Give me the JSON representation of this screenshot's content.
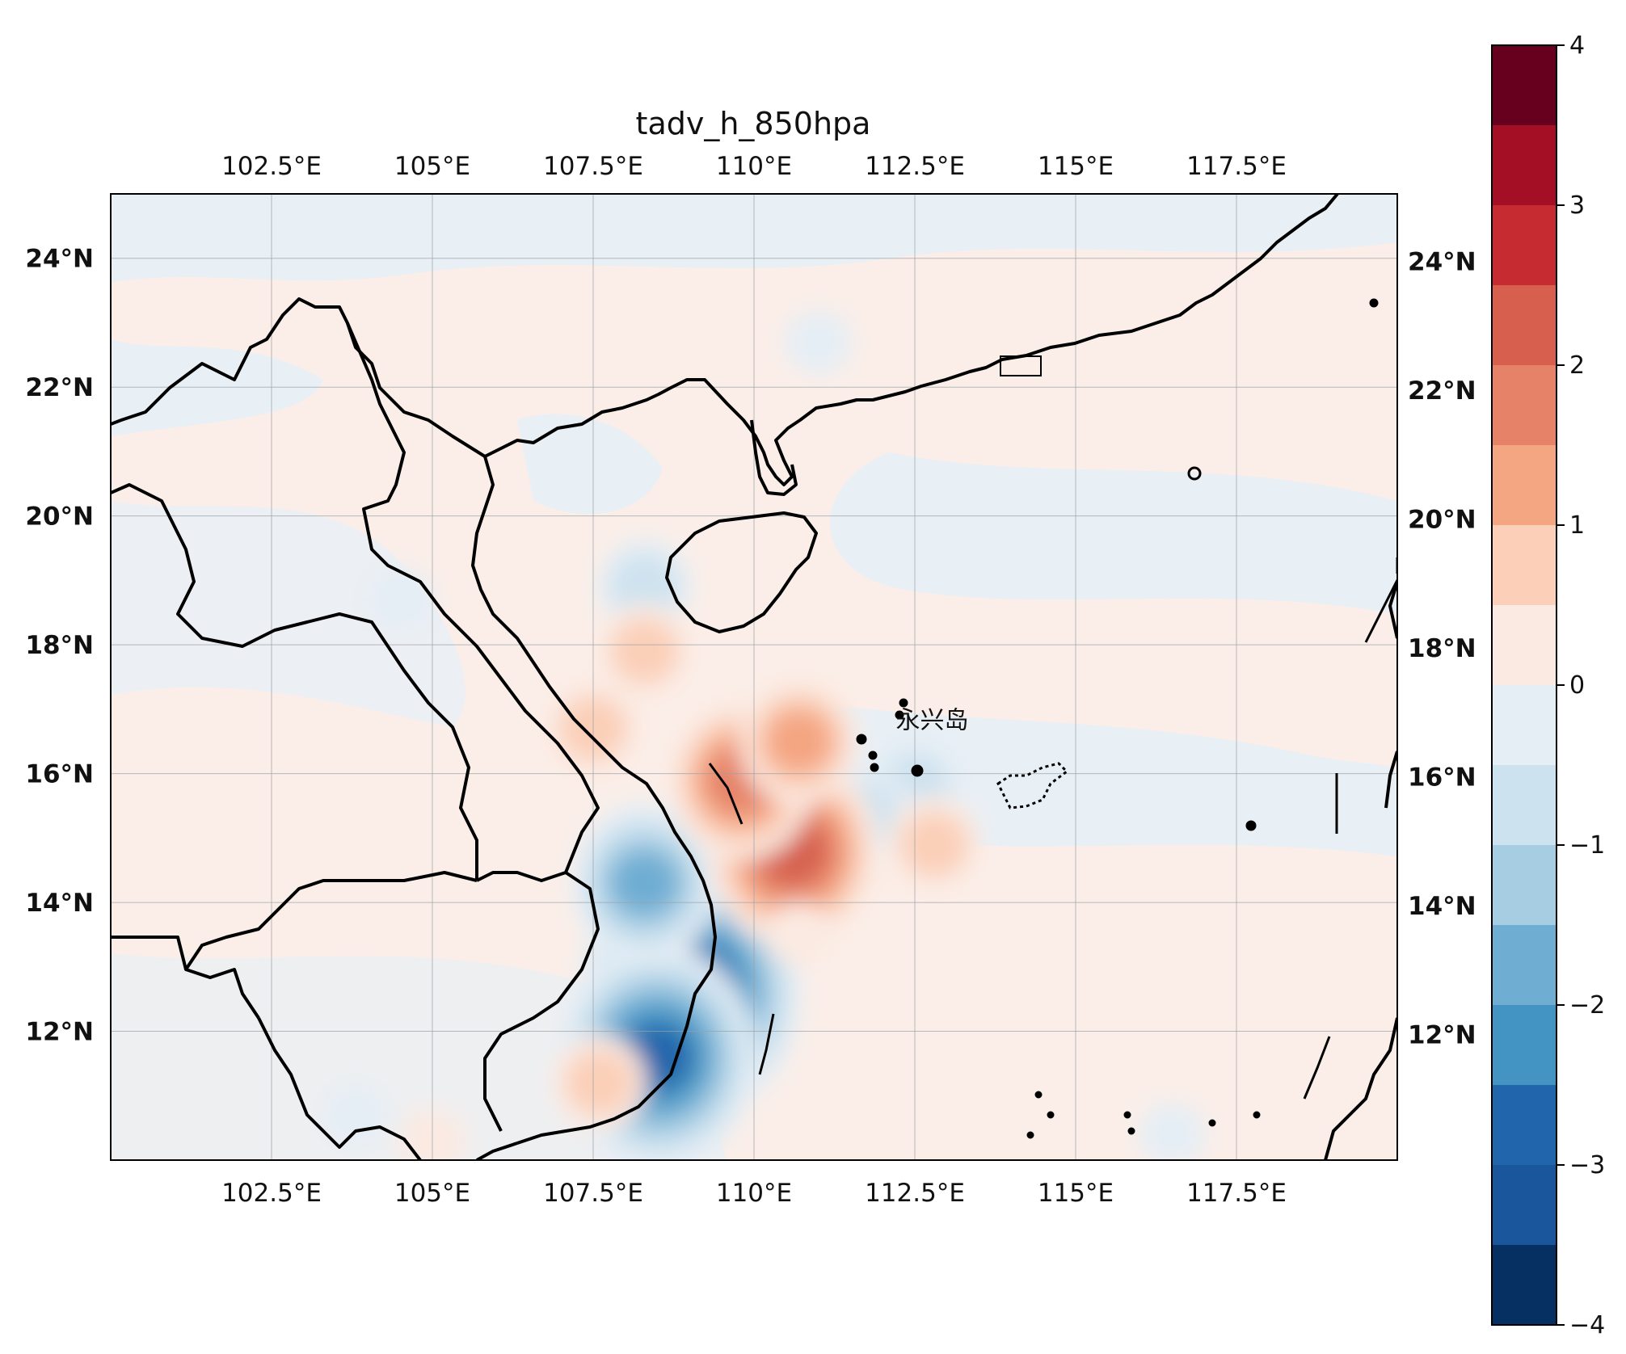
{
  "title": "tadv_h_850hpa",
  "map": {
    "lon_range": [
      100.0,
      120.0
    ],
    "lat_range": [
      10.0,
      25.0
    ],
    "lon_ticks": [
      {
        "value": 102.5,
        "label": "102.5°E"
      },
      {
        "value": 105,
        "label": "105°E"
      },
      {
        "value": 107.5,
        "label": "107.5°E"
      },
      {
        "value": 110,
        "label": "110°E"
      },
      {
        "value": 112.5,
        "label": "112.5°E"
      },
      {
        "value": 115,
        "label": "115°E"
      },
      {
        "value": 117.5,
        "label": "117.5°E"
      }
    ],
    "lat_ticks": [
      {
        "value": 12,
        "label": "12°N"
      },
      {
        "value": 14,
        "label": "14°N"
      },
      {
        "value": 16,
        "label": "16°N"
      },
      {
        "value": 18,
        "label": "18°N"
      },
      {
        "value": 20,
        "label": "20°N"
      },
      {
        "value": 22,
        "label": "22°N"
      },
      {
        "value": 24,
        "label": "24°N"
      }
    ],
    "place_label": {
      "text": "永兴岛",
      "lon": 112.33,
      "lat": 16.83
    },
    "gridlines": true
  },
  "colorbar": {
    "ticks": [
      {
        "value": 4,
        "label": "4"
      },
      {
        "value": 3,
        "label": "3"
      },
      {
        "value": 2,
        "label": "2"
      },
      {
        "value": 1,
        "label": "1"
      },
      {
        "value": 0,
        "label": "0"
      },
      {
        "value": -1,
        "label": "−1"
      },
      {
        "value": -2,
        "label": "−2"
      },
      {
        "value": -3,
        "label": "−3"
      },
      {
        "value": -4,
        "label": "−4"
      }
    ],
    "levels": [
      4,
      3.5,
      3,
      2.5,
      2,
      1.5,
      1,
      0.5,
      0,
      -0.5,
      -1,
      -1.5,
      -2,
      -2.5,
      -3,
      -3.5,
      -4
    ],
    "colors": [
      "#67001f",
      "#a50f25",
      "#c62b32",
      "#d6604d",
      "#e58268",
      "#f4a582",
      "#fbcfb8",
      "#fbeae2",
      "#e5eef5",
      "#cde2ef",
      "#a7cde3",
      "#6fadd3",
      "#4393c3",
      "#2166ac",
      "#1a569b",
      "#053061"
    ]
  },
  "anomalies": [
    {
      "lon": 109.0,
      "lat": 12.6,
      "value": -3.3
    },
    {
      "lon": 108.5,
      "lat": 11.6,
      "value": -2.8
    },
    {
      "lon": 108.3,
      "lat": 14.3,
      "value": -1.8
    },
    {
      "lon": 108.3,
      "lat": 18.9,
      "value": -1.2
    },
    {
      "lon": 112.5,
      "lat": 15.8,
      "value": -1.2
    },
    {
      "lon": 111.7,
      "lat": 15.4,
      "value": -1.0
    },
    {
      "lon": 110.6,
      "lat": 14.8,
      "value": 2.5
    },
    {
      "lon": 109.8,
      "lat": 15.9,
      "value": 1.8
    },
    {
      "lon": 110.7,
      "lat": 16.5,
      "value": 1.6
    },
    {
      "lon": 108.3,
      "lat": 17.9,
      "value": 0.8
    },
    {
      "lon": 107.5,
      "lat": 16.7,
      "value": 0.8
    },
    {
      "lon": 112.8,
      "lat": 14.9,
      "value": 0.8
    },
    {
      "lon": 107.6,
      "lat": 11.2,
      "value": 0.9
    },
    {
      "lon": 110.7,
      "lat": 13.5,
      "value": 0.7
    },
    {
      "lon": 105.0,
      "lat": 10.3,
      "value": 0.6
    },
    {
      "lon": 103.8,
      "lat": 10.7,
      "value": -0.6
    },
    {
      "lon": 104.5,
      "lat": 18.7,
      "value": -0.6
    },
    {
      "lon": 111.0,
      "lat": 22.7,
      "value": -0.6
    },
    {
      "lon": 116.5,
      "lat": 10.4,
      "value": -0.6
    }
  ]
}
